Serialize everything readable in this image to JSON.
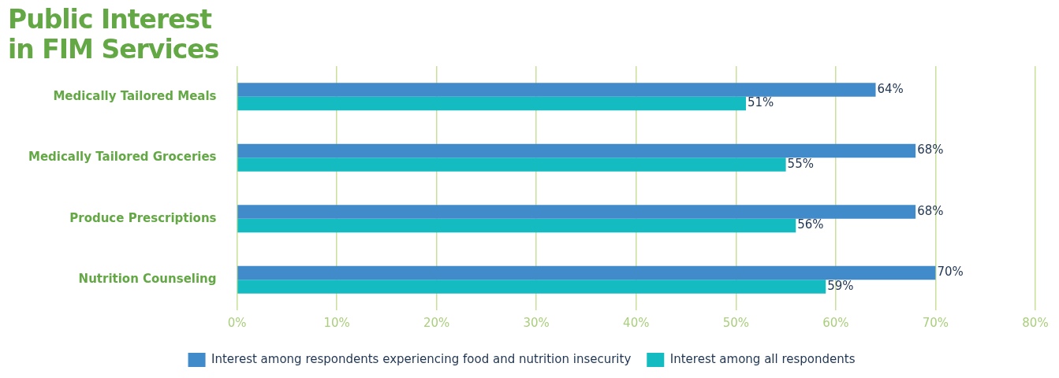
{
  "chart_data": {
    "type": "bar",
    "orientation": "horizontal",
    "title": "Public Interest in FIM Services",
    "categories": [
      "Medically Tailored Meals",
      "Medically Tailored Groceries",
      "Produce Prescriptions",
      "Nutrition Counseling"
    ],
    "series": [
      {
        "name": "Interest among respondents experiencing food and nutrition insecurity",
        "color": "#428bca",
        "values": [
          64,
          68,
          68,
          70
        ],
        "value_labels": [
          "64%",
          "68%",
          "68%",
          "70%"
        ]
      },
      {
        "name": "Interest among all respondents",
        "color": "#14bbc1",
        "values": [
          51,
          55,
          56,
          59
        ],
        "value_labels": [
          "51%",
          "55%",
          "56%",
          "59%"
        ]
      }
    ],
    "xlim": [
      0,
      80
    ],
    "xticks": [
      {
        "value": 0,
        "label": "0%"
      },
      {
        "value": 10,
        "label": "10%"
      },
      {
        "value": 20,
        "label": "20%"
      },
      {
        "value": 30,
        "label": "30%"
      },
      {
        "value": 40,
        "label": "40%"
      },
      {
        "value": 50,
        "label": "50%"
      },
      {
        "value": 60,
        "label": "60%"
      },
      {
        "value": 70,
        "label": "70%"
      },
      {
        "value": 80,
        "label": "80%"
      }
    ],
    "grid": "x",
    "legend": "bottom"
  }
}
